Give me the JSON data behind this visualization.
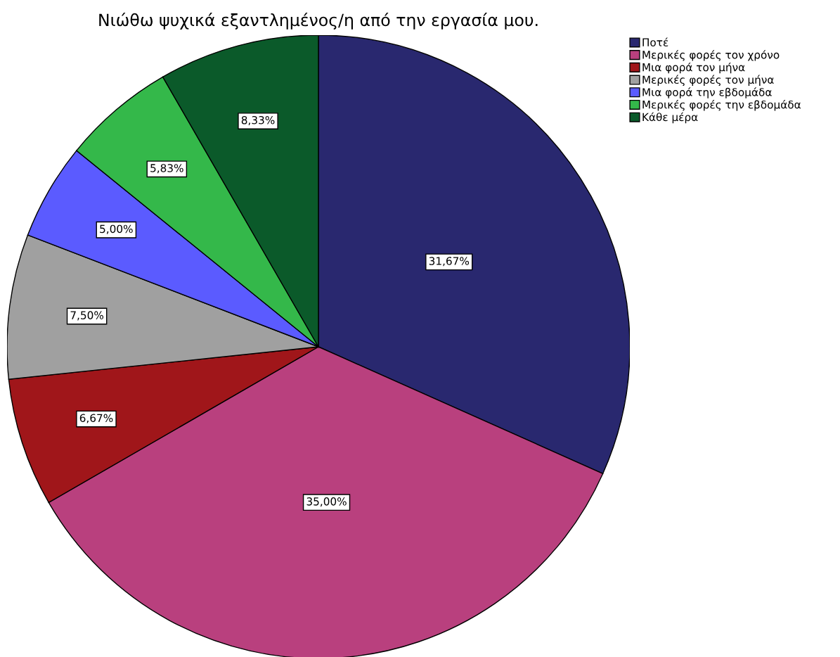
{
  "chart_data": {
    "type": "pie",
    "title": "Νιώθω ψυχικά εξαντλημένος/η από την εργασία μου.",
    "categories": [
      "Ποτέ",
      "Μερικές φορές τον χρόνο",
      "Μια φορά τον μήνα",
      "Μερικές φορές τον μήνα",
      "Μια φορά την εβδομάδα",
      "Μερικές φορές την εβδομάδα",
      "Κάθε μέρα"
    ],
    "values": [
      31.67,
      35.0,
      6.67,
      7.5,
      5.0,
      5.83,
      8.33
    ],
    "value_labels": [
      "31,67%",
      "35,00%",
      "6,67%",
      "7,50%",
      "5,00%",
      "5,83%",
      "8,33%"
    ],
    "colors": [
      "#29286f",
      "#b9407e",
      "#a0161a",
      "#a0a0a0",
      "#5b5bff",
      "#34b84a",
      "#0b5a2a"
    ],
    "legend": "top right"
  }
}
